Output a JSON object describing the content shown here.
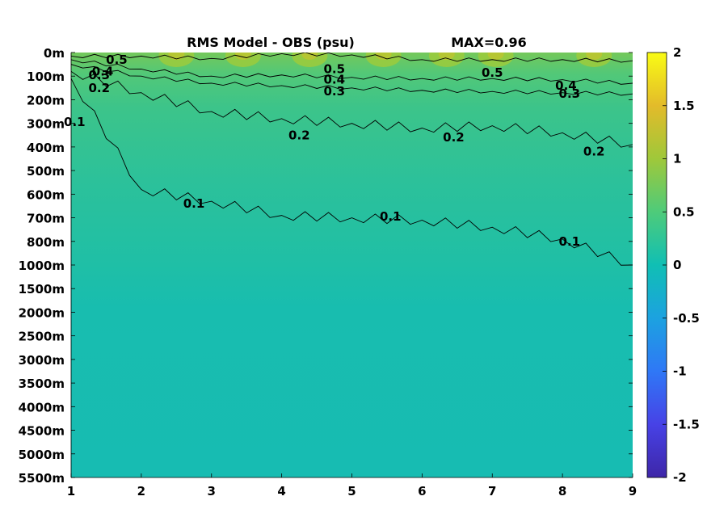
{
  "chart_data": {
    "type": "heatmap",
    "title": "RMS Model - OBS (psu)",
    "max_label": "MAX=0.96",
    "x_ticks": [
      "1",
      "2",
      "3",
      "4",
      "5",
      "6",
      "7",
      "8",
      "9"
    ],
    "xlim": [
      1,
      9
    ],
    "y_ticks": [
      "0m",
      "100m",
      "200m",
      "300m",
      "400m",
      "500m",
      "600m",
      "700m",
      "800m",
      "1000m",
      "1500m",
      "2000m",
      "2500m",
      "3000m",
      "3500m",
      "4000m",
      "4500m",
      "5000m",
      "5500m"
    ],
    "y_scale": "categorical depth levels (non-uniform)",
    "colorbar": {
      "ticks": [
        "2",
        "1.5",
        "1",
        "0.5",
        "0",
        "-0.5",
        "-1",
        "-1.5",
        "-2"
      ],
      "range": [
        -2,
        2
      ],
      "colormap": "parula",
      "colors": [
        "#3e26a8",
        "#4742e6",
        "#2f78f6",
        "#1ca2e0",
        "#10bfb4",
        "#4ecb7a",
        "#9fc83a",
        "#e3bb2a",
        "#f9fb15"
      ]
    },
    "contour_levels": [
      {
        "level": 0.5,
        "label": "0.5",
        "depth_index": [
          0.15,
          0.15,
          0.25,
          0.05,
          0.1,
          0.3,
          0.3,
          0.3,
          0.35
        ],
        "label_positions": [
          [
            1.65,
            0.3
          ],
          [
            4.75,
            0.7
          ],
          [
            7.0,
            0.85
          ]
        ]
      },
      {
        "level": 0.4,
        "label": "0.4",
        "depth_index": [
          0.3,
          0.7,
          1.0,
          0.95,
          1.05,
          1.1,
          1.1,
          1.15,
          1.3
        ],
        "label_positions": [
          [
            1.45,
            0.8
          ],
          [
            4.75,
            1.15
          ],
          [
            8.05,
            1.4
          ]
        ]
      },
      {
        "level": 0.3,
        "label": "0.3",
        "depth_index": [
          0.5,
          1.0,
          1.3,
          1.4,
          1.5,
          1.6,
          1.65,
          1.7,
          1.75
        ],
        "label_positions": [
          [
            1.4,
            0.95
          ],
          [
            4.75,
            1.65
          ],
          [
            8.1,
            1.75
          ]
        ]
      },
      {
        "level": 0.2,
        "label": "0.2",
        "depth_index": [
          0.8,
          1.7,
          2.5,
          2.8,
          3.0,
          3.2,
          3.1,
          3.4,
          3.9
        ],
        "label_positions": [
          [
            1.4,
            1.5
          ],
          [
            4.25,
            3.5
          ],
          [
            6.45,
            3.6
          ],
          [
            8.45,
            4.2
          ]
        ]
      },
      {
        "level": 0.1,
        "label": "0.1",
        "depth_index": [
          1.1,
          5.8,
          6.3,
          6.9,
          7.0,
          7.1,
          7.4,
          7.9,
          9.0
        ],
        "label_positions": [
          [
            1.05,
            2.95
          ],
          [
            2.75,
            6.4
          ],
          [
            5.55,
            6.95
          ],
          [
            8.1,
            8.0
          ]
        ]
      }
    ]
  }
}
